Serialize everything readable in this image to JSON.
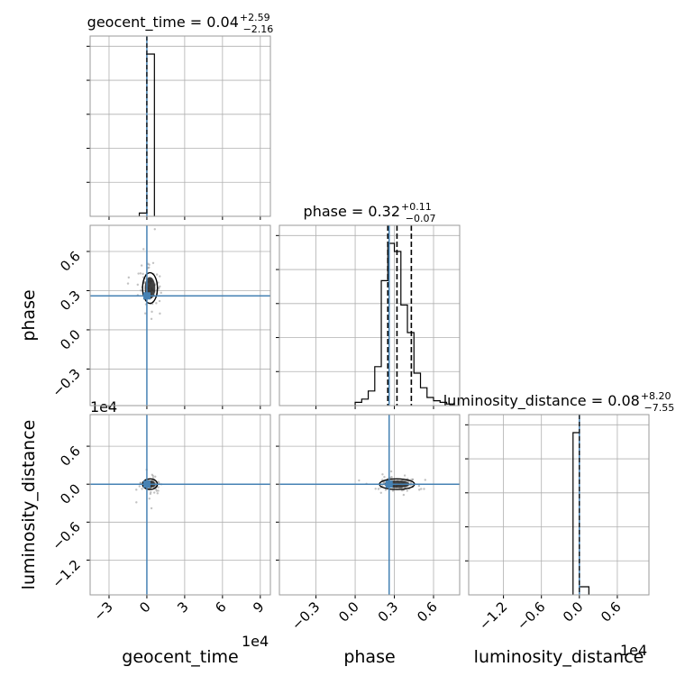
{
  "chart_data": {
    "type": "corner",
    "parameters": [
      "geocent_time",
      "phase",
      "luminosity_distance"
    ],
    "axis_labels": {
      "geocent_time": "geocent_time",
      "phase": "phase",
      "luminosity_distance": "luminosity_distance"
    },
    "ranges": {
      "geocent_time": [
        -4.5,
        9.8
      ],
      "phase": [
        -0.58,
        0.8
      ],
      "luminosity_distance": [
        -1.75,
        1.1
      ]
    },
    "ticks": {
      "geocent_time": [
        -3,
        0,
        3,
        6,
        9
      ],
      "phase": [
        -0.3,
        0.0,
        0.3,
        0.6
      ],
      "luminosity_distance": [
        -1.2,
        -0.6,
        0.0,
        0.6
      ]
    },
    "tick_labels": {
      "geocent_time": [
        "−3",
        "0",
        "3",
        "6",
        "9"
      ],
      "phase": [
        "−0.3",
        "0.0",
        "0.3",
        "0.6"
      ],
      "luminosity_distance": [
        "−1.2",
        "−0.6",
        "0.0",
        "0.6"
      ]
    },
    "offset_labels": {
      "geocent_time": "1e4",
      "luminosity_distance": "1e4"
    },
    "truths": {
      "geocent_time": 0.0,
      "phase": 0.26,
      "luminosity_distance": 0.0
    },
    "titles": [
      {
        "name": "geocent_time",
        "median": "0.04",
        "plus": "+2.59",
        "minus": "−2.16"
      },
      {
        "name": "phase",
        "median": "0.32",
        "plus": "+0.11",
        "minus": "−0.07"
      },
      {
        "name": "luminosity_distance",
        "median": "0.08",
        "plus": "+8.20",
        "minus": "−7.55"
      }
    ],
    "quantile_lines": {
      "phase": [
        0.25,
        0.32,
        0.43
      ]
    },
    "histograms": {
      "geocent_time": {
        "edges": [
          -0.6,
          0.0,
          0.6
        ],
        "counts": [
          0.02,
          1.0
        ]
      },
      "phase": {
        "edges": [
          0.0,
          0.05,
          0.1,
          0.15,
          0.2,
          0.25,
          0.3,
          0.35,
          0.4,
          0.45,
          0.5,
          0.55,
          0.6,
          0.65,
          0.7,
          0.75
        ],
        "counts": [
          0.02,
          0.04,
          0.09,
          0.24,
          0.77,
          1.0,
          0.95,
          0.62,
          0.45,
          0.2,
          0.11,
          0.05,
          0.03,
          0.02,
          0.01
        ]
      },
      "luminosity_distance": {
        "edges": [
          -0.1,
          0.0,
          0.15
        ],
        "counts": [
          1.0,
          0.05
        ]
      }
    },
    "grid": true
  }
}
